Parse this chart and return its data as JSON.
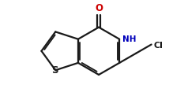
{
  "background_color": "#ffffff",
  "bond_color": "#1a1a1a",
  "atom_colors": {
    "O": "#cc0000",
    "N": "#0000bb",
    "S": "#1a1a1a",
    "Cl": "#1a1a1a",
    "C": "#1a1a1a"
  },
  "figsize": [
    2.14,
    1.36
  ],
  "dpi": 100,
  "xlim": [
    0,
    10
  ],
  "ylim": [
    0,
    6.4
  ]
}
